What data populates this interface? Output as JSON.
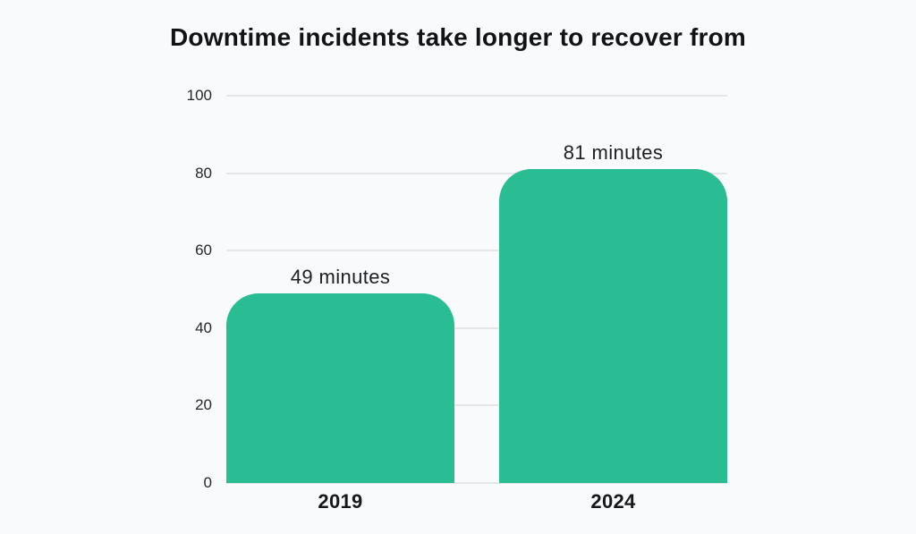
{
  "title": "Downtime incidents take longer to recover from",
  "colors": {
    "background": "#f9fafb",
    "bar": "#2abc93",
    "gridline": "#e6e6ea",
    "text": "#17181c"
  },
  "chart_data": {
    "type": "bar",
    "title": "Downtime incidents take longer to recover from",
    "categories": [
      "2019",
      "2024"
    ],
    "values": [
      49,
      81
    ],
    "value_labels": [
      "49 minutes",
      "81 minutes"
    ],
    "unit": "minutes",
    "xlabel": "",
    "ylabel": "",
    "ylim": [
      0,
      100
    ],
    "yticks": [
      0,
      20,
      40,
      60,
      80,
      100
    ],
    "grid": true,
    "legend": false
  }
}
